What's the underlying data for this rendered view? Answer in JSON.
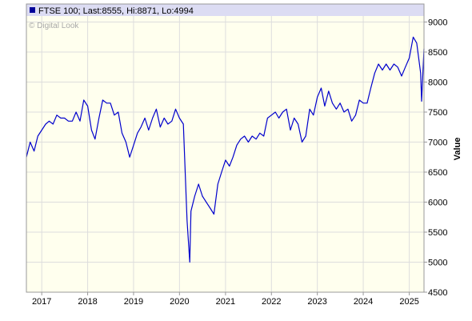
{
  "chart_data": {
    "type": "line",
    "title": "",
    "legend": "FTSE 100; Last:8555, Hi:8871, Lo:4994",
    "legend_position": "top-left",
    "watermark": "© Digital Look",
    "xlabel": "",
    "ylabel": "Value",
    "ylim": [
      4500,
      9300
    ],
    "y_ticks": [
      4500,
      5000,
      5500,
      6000,
      6500,
      7000,
      7500,
      8000,
      8500,
      9000
    ],
    "x_ticks": [
      "2017",
      "2018",
      "2019",
      "2020",
      "2021",
      "2022",
      "2023",
      "2024",
      "2025"
    ],
    "xlim": [
      "2016-09-01",
      "2025-04-28"
    ],
    "grid": true,
    "series": [
      {
        "name": "FTSE 100",
        "color": "#0000cc",
        "x": [
          "2016-09-01",
          "2016-10-01",
          "2016-11-01",
          "2016-12-01",
          "2017-01-01",
          "2017-02-01",
          "2017-03-01",
          "2017-04-01",
          "2017-05-01",
          "2017-06-01",
          "2017-07-01",
          "2017-08-01",
          "2017-09-01",
          "2017-10-01",
          "2017-11-01",
          "2017-12-01",
          "2018-01-01",
          "2018-02-01",
          "2018-03-01",
          "2018-04-01",
          "2018-05-01",
          "2018-06-01",
          "2018-07-01",
          "2018-08-01",
          "2018-09-01",
          "2018-10-01",
          "2018-11-01",
          "2018-12-01",
          "2019-01-01",
          "2019-02-01",
          "2019-03-01",
          "2019-04-01",
          "2019-05-01",
          "2019-06-01",
          "2019-07-01",
          "2019-08-01",
          "2019-09-01",
          "2019-10-01",
          "2019-11-01",
          "2019-12-01",
          "2020-01-01",
          "2020-02-01",
          "2020-03-01",
          "2020-03-23",
          "2020-04-01",
          "2020-05-01",
          "2020-06-01",
          "2020-07-01",
          "2020-08-01",
          "2020-09-01",
          "2020-10-01",
          "2020-11-01",
          "2020-12-01",
          "2021-01-01",
          "2021-02-01",
          "2021-03-01",
          "2021-04-01",
          "2021-05-01",
          "2021-06-01",
          "2021-07-01",
          "2021-08-01",
          "2021-09-01",
          "2021-10-01",
          "2021-11-01",
          "2021-12-01",
          "2022-01-01",
          "2022-02-01",
          "2022-03-01",
          "2022-04-01",
          "2022-05-01",
          "2022-06-01",
          "2022-07-01",
          "2022-08-01",
          "2022-09-01",
          "2022-10-01",
          "2022-11-01",
          "2022-12-01",
          "2023-01-01",
          "2023-02-01",
          "2023-03-01",
          "2023-04-01",
          "2023-05-01",
          "2023-06-01",
          "2023-07-01",
          "2023-08-01",
          "2023-09-01",
          "2023-10-01",
          "2023-11-01",
          "2023-12-01",
          "2024-01-01",
          "2024-02-01",
          "2024-03-01",
          "2024-04-01",
          "2024-05-01",
          "2024-06-01",
          "2024-07-01",
          "2024-08-01",
          "2024-09-01",
          "2024-10-01",
          "2024-11-01",
          "2024-12-01",
          "2025-01-01",
          "2025-02-01",
          "2025-03-01",
          "2025-04-01",
          "2025-04-09",
          "2025-04-28"
        ],
        "values": [
          6750,
          7000,
          6850,
          7100,
          7200,
          7300,
          7350,
          7300,
          7450,
          7400,
          7400,
          7350,
          7350,
          7500,
          7350,
          7700,
          7600,
          7200,
          7050,
          7400,
          7700,
          7650,
          7650,
          7450,
          7500,
          7150,
          7000,
          6750,
          6950,
          7150,
          7250,
          7400,
          7200,
          7400,
          7550,
          7250,
          7400,
          7300,
          7350,
          7550,
          7400,
          7300,
          5700,
          5000,
          5850,
          6100,
          6300,
          6100,
          6000,
          5900,
          5800,
          6300,
          6500,
          6700,
          6600,
          6750,
          6950,
          7050,
          7100,
          7000,
          7100,
          7050,
          7150,
          7100,
          7400,
          7450,
          7500,
          7400,
          7500,
          7550,
          7200,
          7400,
          7300,
          7000,
          7100,
          7550,
          7450,
          7750,
          7900,
          7600,
          7850,
          7650,
          7550,
          7650,
          7500,
          7550,
          7350,
          7450,
          7700,
          7650,
          7650,
          7900,
          8150,
          8300,
          8200,
          8300,
          8200,
          8300,
          8250,
          8100,
          8250,
          8400,
          8750,
          8650,
          8150,
          7680,
          8555
        ]
      }
    ]
  }
}
